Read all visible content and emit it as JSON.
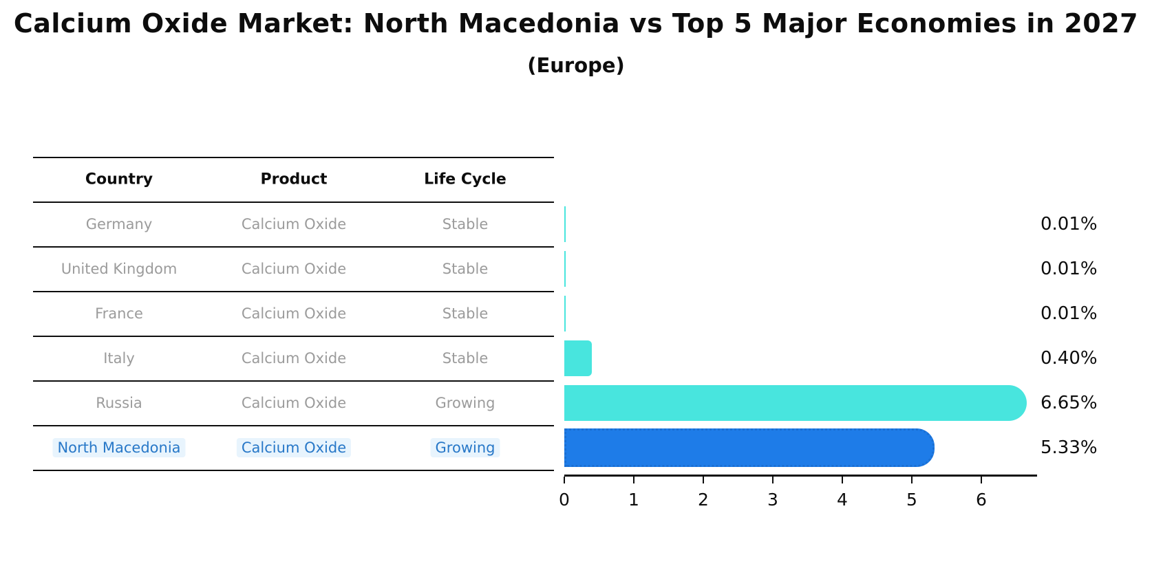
{
  "title": "Calcium Oxide Market: North Macedonia vs Top 5 Major Economies in 2027",
  "subtitle": "(Europe)",
  "colors": {
    "bar_default": "#48E5DE",
    "bar_highlight_fill": "#1E7CE8",
    "bar_highlight_edge": "#1a6fd2",
    "table_text": "#9b9b9b",
    "highlight_text": "#2878c8",
    "axis": "#0d0d0d"
  },
  "table": {
    "columns": [
      "Country",
      "Product",
      "Life Cycle"
    ],
    "rows": [
      {
        "country": "Germany",
        "product": "Calcium Oxide",
        "life_cycle": "Stable",
        "highlighted": false
      },
      {
        "country": "United Kingdom",
        "product": "Calcium Oxide",
        "life_cycle": "Stable",
        "highlighted": false
      },
      {
        "country": "France",
        "product": "Calcium Oxide",
        "life_cycle": "Stable",
        "highlighted": false
      },
      {
        "country": "Italy",
        "product": "Calcium Oxide",
        "life_cycle": "Stable",
        "highlighted": false
      },
      {
        "country": "Russia",
        "product": "Calcium Oxide",
        "life_cycle": "Growing",
        "highlighted": false
      },
      {
        "country": "North Macedonia",
        "product": "Calcium Oxide",
        "life_cycle": "Growing",
        "highlighted": true
      }
    ]
  },
  "chart_data": {
    "type": "bar",
    "orientation": "horizontal",
    "title": "Calcium Oxide Market: North Macedonia vs Top 5 Major Economies in 2027",
    "subtitle": "(Europe)",
    "categories": [
      "Germany",
      "United Kingdom",
      "France",
      "Italy",
      "Russia",
      "North Macedonia"
    ],
    "values": [
      0.01,
      0.01,
      0.01,
      0.4,
      6.65,
      5.33
    ],
    "value_labels": [
      "0.01%",
      "0.01%",
      "0.01%",
      "0.40%",
      "6.65%",
      "5.33%"
    ],
    "xticks": [
      0,
      1,
      2,
      3,
      4,
      5,
      6
    ],
    "xlim": [
      0,
      6.8
    ],
    "grid": false,
    "legend": "none",
    "highlight_index": 5
  }
}
